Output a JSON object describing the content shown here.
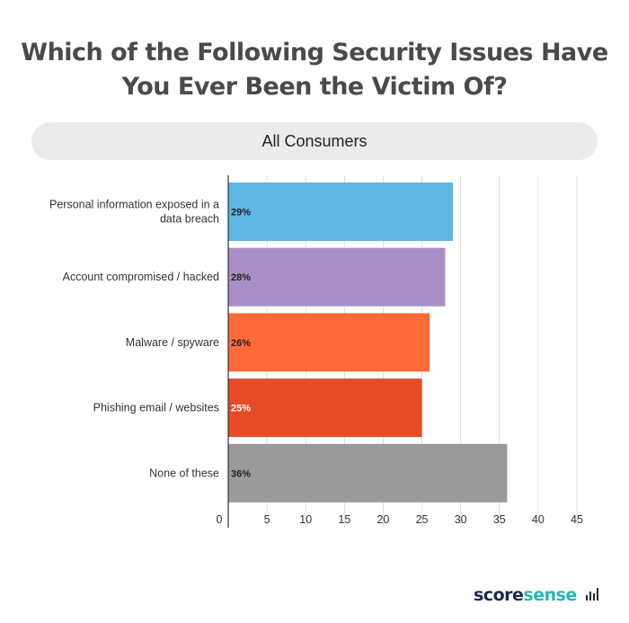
{
  "chart_data": {
    "type": "bar",
    "orientation": "horizontal",
    "title": "Which of the Following Security Issues Have You Ever Been the Victim Of?",
    "subtitle": "All Consumers",
    "categories": [
      "Personal information exposed in a data breach",
      "Account compromised / hacked",
      "Malware / spyware",
      "Phishing email / websites",
      "None of these"
    ],
    "category_lines": [
      [
        "Personal information exposed in a",
        "data breach"
      ],
      [
        "Account compromised / hacked"
      ],
      [
        "Malware / spyware"
      ],
      [
        "Phishing email / websites"
      ],
      [
        "None of these"
      ]
    ],
    "values": [
      29,
      28,
      26,
      25,
      36
    ],
    "value_labels": [
      "29%",
      "28%",
      "26%",
      "25%",
      "36%"
    ],
    "colors": [
      "#5eb6e4",
      "#a98fc6",
      "#fe6b3a",
      "#e44b26",
      "#9a9a9a"
    ],
    "value_label_colors": [
      "#222222",
      "#222222",
      "#222222",
      "#ffffff",
      "#222222"
    ],
    "xlim": [
      0,
      45
    ],
    "xticks": [
      0,
      5,
      10,
      15,
      20,
      25,
      30,
      35,
      40,
      45
    ],
    "grid": true
  },
  "branding": {
    "logo_score": "score",
    "logo_sense": "sense"
  }
}
